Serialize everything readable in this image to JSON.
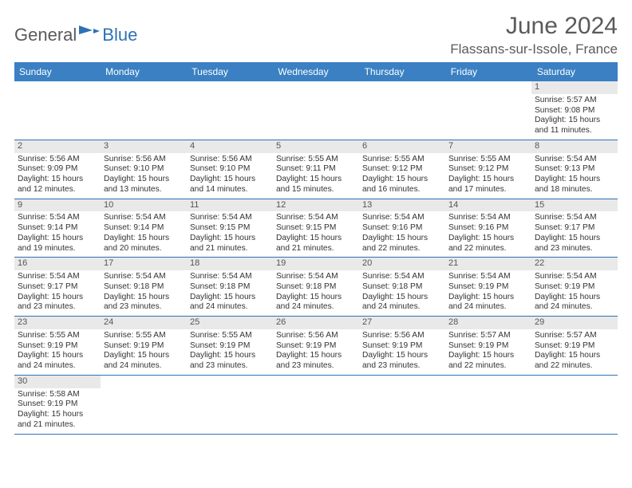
{
  "logo": {
    "text_general": "General",
    "text_blue": "Blue",
    "icon_fill": "#2d72b5"
  },
  "title": "June 2024",
  "location": "Flassans-sur-Issole, France",
  "colors": {
    "header_bg": "#3a80c3",
    "header_text": "#ffffff",
    "row_border": "#2d72b5",
    "daynum_bg": "#e9e9e9",
    "text": "#333333",
    "title_text": "#5a5a5a"
  },
  "weekdays": [
    "Sunday",
    "Monday",
    "Tuesday",
    "Wednesday",
    "Thursday",
    "Friday",
    "Saturday"
  ],
  "weeks": [
    [
      null,
      null,
      null,
      null,
      null,
      null,
      {
        "n": "1",
        "sunrise": "5:57 AM",
        "sunset": "9:08 PM",
        "day_h": 15,
        "day_m": 11
      }
    ],
    [
      {
        "n": "2",
        "sunrise": "5:56 AM",
        "sunset": "9:09 PM",
        "day_h": 15,
        "day_m": 12
      },
      {
        "n": "3",
        "sunrise": "5:56 AM",
        "sunset": "9:10 PM",
        "day_h": 15,
        "day_m": 13
      },
      {
        "n": "4",
        "sunrise": "5:56 AM",
        "sunset": "9:10 PM",
        "day_h": 15,
        "day_m": 14
      },
      {
        "n": "5",
        "sunrise": "5:55 AM",
        "sunset": "9:11 PM",
        "day_h": 15,
        "day_m": 15
      },
      {
        "n": "6",
        "sunrise": "5:55 AM",
        "sunset": "9:12 PM",
        "day_h": 15,
        "day_m": 16
      },
      {
        "n": "7",
        "sunrise": "5:55 AM",
        "sunset": "9:12 PM",
        "day_h": 15,
        "day_m": 17
      },
      {
        "n": "8",
        "sunrise": "5:54 AM",
        "sunset": "9:13 PM",
        "day_h": 15,
        "day_m": 18
      }
    ],
    [
      {
        "n": "9",
        "sunrise": "5:54 AM",
        "sunset": "9:14 PM",
        "day_h": 15,
        "day_m": 19
      },
      {
        "n": "10",
        "sunrise": "5:54 AM",
        "sunset": "9:14 PM",
        "day_h": 15,
        "day_m": 20
      },
      {
        "n": "11",
        "sunrise": "5:54 AM",
        "sunset": "9:15 PM",
        "day_h": 15,
        "day_m": 21
      },
      {
        "n": "12",
        "sunrise": "5:54 AM",
        "sunset": "9:15 PM",
        "day_h": 15,
        "day_m": 21
      },
      {
        "n": "13",
        "sunrise": "5:54 AM",
        "sunset": "9:16 PM",
        "day_h": 15,
        "day_m": 22
      },
      {
        "n": "14",
        "sunrise": "5:54 AM",
        "sunset": "9:16 PM",
        "day_h": 15,
        "day_m": 22
      },
      {
        "n": "15",
        "sunrise": "5:54 AM",
        "sunset": "9:17 PM",
        "day_h": 15,
        "day_m": 23
      }
    ],
    [
      {
        "n": "16",
        "sunrise": "5:54 AM",
        "sunset": "9:17 PM",
        "day_h": 15,
        "day_m": 23
      },
      {
        "n": "17",
        "sunrise": "5:54 AM",
        "sunset": "9:18 PM",
        "day_h": 15,
        "day_m": 23
      },
      {
        "n": "18",
        "sunrise": "5:54 AM",
        "sunset": "9:18 PM",
        "day_h": 15,
        "day_m": 24
      },
      {
        "n": "19",
        "sunrise": "5:54 AM",
        "sunset": "9:18 PM",
        "day_h": 15,
        "day_m": 24
      },
      {
        "n": "20",
        "sunrise": "5:54 AM",
        "sunset": "9:18 PM",
        "day_h": 15,
        "day_m": 24
      },
      {
        "n": "21",
        "sunrise": "5:54 AM",
        "sunset": "9:19 PM",
        "day_h": 15,
        "day_m": 24
      },
      {
        "n": "22",
        "sunrise": "5:54 AM",
        "sunset": "9:19 PM",
        "day_h": 15,
        "day_m": 24
      }
    ],
    [
      {
        "n": "23",
        "sunrise": "5:55 AM",
        "sunset": "9:19 PM",
        "day_h": 15,
        "day_m": 24
      },
      {
        "n": "24",
        "sunrise": "5:55 AM",
        "sunset": "9:19 PM",
        "day_h": 15,
        "day_m": 24
      },
      {
        "n": "25",
        "sunrise": "5:55 AM",
        "sunset": "9:19 PM",
        "day_h": 15,
        "day_m": 23
      },
      {
        "n": "26",
        "sunrise": "5:56 AM",
        "sunset": "9:19 PM",
        "day_h": 15,
        "day_m": 23
      },
      {
        "n": "27",
        "sunrise": "5:56 AM",
        "sunset": "9:19 PM",
        "day_h": 15,
        "day_m": 23
      },
      {
        "n": "28",
        "sunrise": "5:57 AM",
        "sunset": "9:19 PM",
        "day_h": 15,
        "day_m": 22
      },
      {
        "n": "29",
        "sunrise": "5:57 AM",
        "sunset": "9:19 PM",
        "day_h": 15,
        "day_m": 22
      }
    ],
    [
      {
        "n": "30",
        "sunrise": "5:58 AM",
        "sunset": "9:19 PM",
        "day_h": 15,
        "day_m": 21
      },
      null,
      null,
      null,
      null,
      null,
      null
    ]
  ],
  "labels": {
    "sunrise": "Sunrise:",
    "sunset": "Sunset:",
    "daylight_prefix": "Daylight:",
    "hours_word": "hours",
    "and_word": "and",
    "minutes_word": "minutes."
  }
}
